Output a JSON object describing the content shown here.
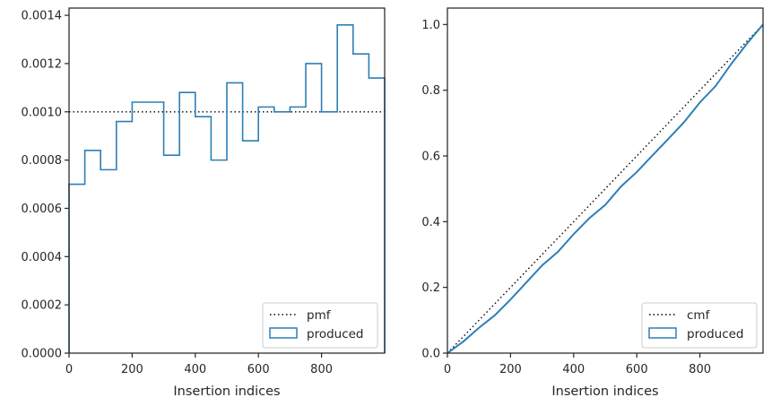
{
  "colors": {
    "produced": "#2f7fb5",
    "reference": "#000000",
    "axes": "#262626"
  },
  "chart_data": [
    {
      "type": "histogram-step",
      "xlabel": "Insertion indices",
      "ylabel": "",
      "xlim": [
        0,
        1000
      ],
      "ylim": [
        0,
        0.00143
      ],
      "xticks": [
        0,
        200,
        400,
        600,
        800
      ],
      "xtick_labels": [
        "0",
        "200",
        "400",
        "600",
        "800"
      ],
      "yticks": [
        0,
        0.0002,
        0.0004,
        0.0006,
        0.0008,
        0.001,
        0.0012,
        0.0014
      ],
      "ytick_labels": [
        "0.0000",
        "0.0002",
        "0.0004",
        "0.0006",
        "0.0008",
        "0.0010",
        "0.0012",
        "0.0014"
      ],
      "bin_edges": [
        0,
        50,
        100,
        150,
        200,
        250,
        300,
        350,
        400,
        450,
        500,
        550,
        600,
        650,
        700,
        750,
        800,
        850,
        900,
        950,
        1000
      ],
      "series": [
        {
          "name": "produced",
          "style": "step",
          "values": [
            0.0007,
            0.00084,
            0.00076,
            0.00096,
            0.00104,
            0.00104,
            0.00082,
            0.00108,
            0.00098,
            0.0008,
            0.00112,
            0.00088,
            0.00102,
            0.001,
            0.00102,
            0.0012,
            0.001,
            0.00136,
            0.00124,
            0.00114
          ]
        },
        {
          "name": "pmf",
          "style": "dotted",
          "y": 0.001
        }
      ],
      "legend": {
        "location": "lower right",
        "entries": [
          "pmf",
          "produced"
        ]
      }
    },
    {
      "type": "line",
      "xlabel": "Insertion indices",
      "ylabel": "",
      "xlim": [
        0,
        1000
      ],
      "ylim": [
        0,
        1.05
      ],
      "xticks": [
        0,
        200,
        400,
        600,
        800
      ],
      "xtick_labels": [
        "0",
        "200",
        "400",
        "600",
        "800"
      ],
      "yticks": [
        0,
        0.2,
        0.4,
        0.6,
        0.8,
        1.0
      ],
      "ytick_labels": [
        "0.0",
        "0.2",
        "0.4",
        "0.6",
        "0.8",
        "1.0"
      ],
      "series": [
        {
          "name": "cmf",
          "style": "dotted",
          "x": [
            0,
            1000
          ],
          "y": [
            0,
            1.0
          ]
        },
        {
          "name": "produced",
          "style": "step",
          "x": [
            0,
            50,
            100,
            150,
            200,
            250,
            300,
            350,
            400,
            450,
            500,
            550,
            600,
            650,
            700,
            750,
            800,
            850,
            900,
            950,
            1000
          ],
          "y": [
            0,
            0.035,
            0.077,
            0.115,
            0.163,
            0.215,
            0.267,
            0.308,
            0.362,
            0.411,
            0.451,
            0.507,
            0.551,
            0.602,
            0.652,
            0.703,
            0.763,
            0.813,
            0.881,
            0.943,
            1.0
          ]
        }
      ],
      "legend": {
        "location": "lower right",
        "entries": [
          "cmf",
          "produced"
        ]
      }
    }
  ]
}
